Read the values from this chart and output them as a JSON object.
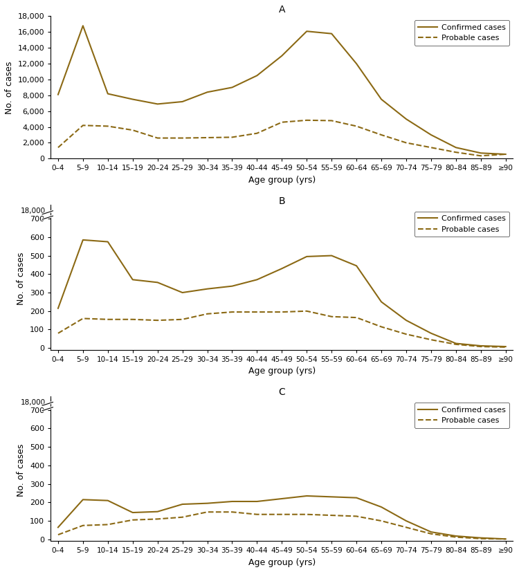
{
  "age_groups": [
    "0–4",
    "5–9",
    "10–14",
    "15–19",
    "20–24",
    "25–29",
    "30–34",
    "35–39",
    "40–44",
    "45–49",
    "50–54",
    "55–59",
    "60–64",
    "65–69",
    "70–74",
    "75–79",
    "80–84",
    "85–89",
    "≥90"
  ],
  "panel_A": {
    "title": "A",
    "confirmed": [
      8100,
      16800,
      8200,
      7500,
      6900,
      7200,
      8400,
      9000,
      10500,
      13000,
      16100,
      15800,
      12000,
      7500,
      5000,
      3000,
      1400,
      700,
      550
    ],
    "probable": [
      1400,
      4200,
      4100,
      3600,
      2600,
      2600,
      2650,
      2700,
      3200,
      4600,
      4850,
      4800,
      4100,
      3000,
      2000,
      1400,
      800,
      350,
      550
    ],
    "yticks": [
      0,
      2000,
      4000,
      6000,
      8000,
      10000,
      12000,
      14000,
      16000,
      18000
    ],
    "ylim": [
      0,
      18000
    ],
    "yticklabels": [
      "0",
      "2,000",
      "4,000",
      "6,000",
      "8,000",
      "10,000",
      "12,000",
      "14,000",
      "16,000",
      "18,000"
    ],
    "broken_axis": false
  },
  "panel_B": {
    "title": "B",
    "confirmed": [
      215,
      585,
      575,
      370,
      355,
      300,
      320,
      335,
      370,
      430,
      495,
      500,
      445,
      250,
      150,
      80,
      25,
      12,
      8
    ],
    "probable": [
      80,
      160,
      155,
      155,
      150,
      155,
      185,
      195,
      195,
      195,
      200,
      170,
      165,
      115,
      75,
      45,
      20,
      8,
      5
    ],
    "yticks": [
      0,
      100,
      200,
      300,
      400,
      500,
      600,
      700
    ],
    "ylim": [
      -10,
      760
    ],
    "yticklabels": [
      "0",
      "100",
      "200",
      "300",
      "400",
      "500",
      "600",
      "700"
    ],
    "broken_axis": true,
    "break_label": "18,000"
  },
  "panel_C": {
    "title": "C",
    "confirmed": [
      65,
      215,
      210,
      145,
      150,
      190,
      195,
      205,
      205,
      220,
      235,
      230,
      225,
      175,
      100,
      40,
      18,
      8,
      2
    ],
    "probable": [
      25,
      75,
      80,
      105,
      110,
      120,
      148,
      148,
      135,
      135,
      135,
      130,
      125,
      100,
      65,
      30,
      12,
      4,
      2
    ],
    "yticks": [
      0,
      100,
      200,
      300,
      400,
      500,
      600,
      700
    ],
    "ylim": [
      -10,
      760
    ],
    "yticklabels": [
      "0",
      "100",
      "200",
      "300",
      "400",
      "500",
      "600",
      "700"
    ],
    "broken_axis": true,
    "break_label": "18,000"
  },
  "line_color": "#8B6914",
  "xlabel": "Age group (yrs)",
  "ylabel": "No. of cases",
  "legend_confirmed": "Confirmed cases",
  "legend_probable": "Probable cases"
}
